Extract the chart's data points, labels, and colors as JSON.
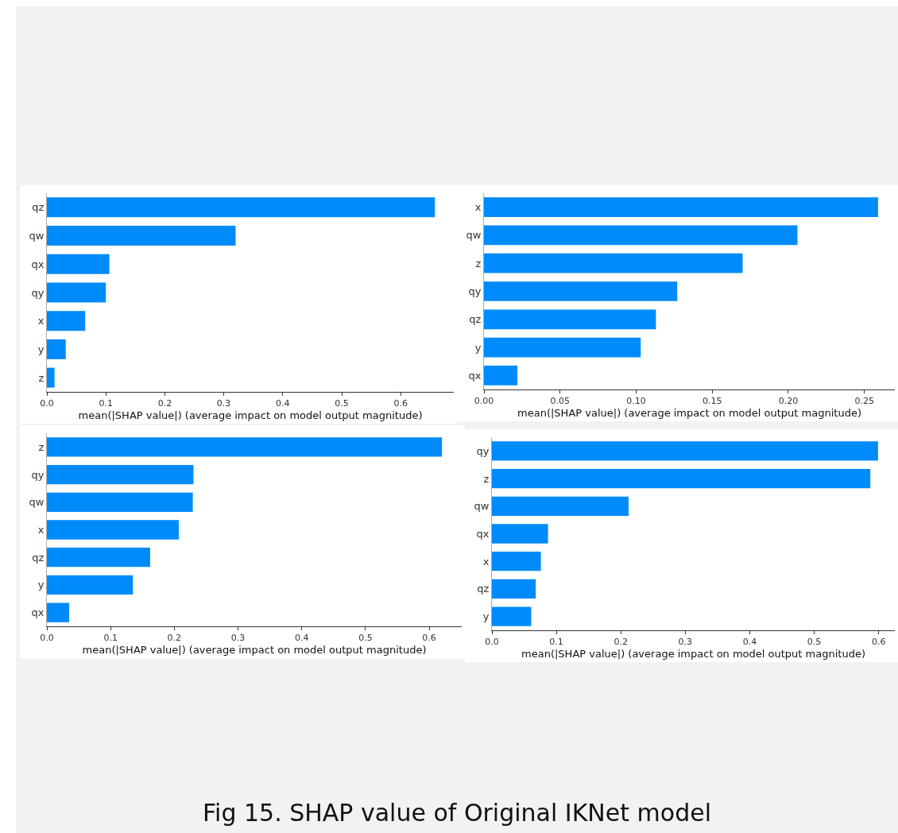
{
  "chart_data": [
    {
      "type": "bar",
      "orientation": "horizontal",
      "categories": [
        "qz",
        "qw",
        "qx",
        "qy",
        "x",
        "y",
        "z"
      ],
      "values": [
        0.658,
        0.32,
        0.106,
        0.1,
        0.065,
        0.032,
        0.013
      ],
      "color": "#008bfb",
      "xlabel": "mean(|SHAP value|) (average impact on model output magnitude)",
      "xlim": [
        0,
        0.69
      ],
      "xticks": [
        {
          "value": 0,
          "label": "0.0"
        },
        {
          "value": 0.1,
          "label": "0.1"
        },
        {
          "value": 0.2,
          "label": "0.2"
        },
        {
          "value": 0.3,
          "label": "0.3"
        },
        {
          "value": 0.4,
          "label": "0.4"
        },
        {
          "value": 0.5,
          "label": "0.5"
        },
        {
          "value": 0.6,
          "label": "0.6"
        }
      ],
      "grid": false
    },
    {
      "type": "bar",
      "orientation": "horizontal",
      "categories": [
        "x",
        "qw",
        "z",
        "qy",
        "qz",
        "y",
        "qx"
      ],
      "values": [
        0.259,
        0.206,
        0.17,
        0.127,
        0.113,
        0.103,
        0.022
      ],
      "color": "#008bfb",
      "xlabel": "mean(|SHAP value|) (average impact on model output magnitude)",
      "xlim": [
        0,
        0.27
      ],
      "xticks": [
        {
          "value": 0,
          "label": "0.00"
        },
        {
          "value": 0.05,
          "label": "0.05"
        },
        {
          "value": 0.1,
          "label": "0.10"
        },
        {
          "value": 0.15,
          "label": "0.15"
        },
        {
          "value": 0.2,
          "label": "0.20"
        },
        {
          "value": 0.25,
          "label": "0.25"
        }
      ],
      "grid": false
    },
    {
      "type": "bar",
      "orientation": "horizontal",
      "categories": [
        "z",
        "qy",
        "qw",
        "x",
        "qz",
        "y",
        "qx"
      ],
      "values": [
        0.62,
        0.23,
        0.229,
        0.207,
        0.162,
        0.135,
        0.035
      ],
      "color": "#008bfb",
      "xlabel": "mean(|SHAP value|) (average impact on model output magnitude)",
      "xlim": [
        0,
        0.651
      ],
      "xticks": [
        {
          "value": 0,
          "label": "0.0"
        },
        {
          "value": 0.1,
          "label": "0.1"
        },
        {
          "value": 0.2,
          "label": "0.2"
        },
        {
          "value": 0.3,
          "label": "0.3"
        },
        {
          "value": 0.4,
          "label": "0.4"
        },
        {
          "value": 0.5,
          "label": "0.5"
        },
        {
          "value": 0.6,
          "label": "0.6"
        }
      ],
      "grid": false
    },
    {
      "type": "bar",
      "orientation": "horizontal",
      "categories": [
        "qy",
        "z",
        "qw",
        "qx",
        "x",
        "qz",
        "y"
      ],
      "values": [
        0.599,
        0.587,
        0.212,
        0.087,
        0.076,
        0.068,
        0.061
      ],
      "color": "#008bfb",
      "xlabel": "mean(|SHAP value|) (average impact on model output magnitude)",
      "xlim": [
        0,
        0.625
      ],
      "xticks": [
        {
          "value": 0,
          "label": "0.0"
        },
        {
          "value": 0.1,
          "label": "0.1"
        },
        {
          "value": 0.2,
          "label": "0.2"
        },
        {
          "value": 0.3,
          "label": "0.3"
        },
        {
          "value": 0.4,
          "label": "0.4"
        },
        {
          "value": 0.5,
          "label": "0.5"
        },
        {
          "value": 0.6,
          "label": "0.6"
        }
      ],
      "grid": false,
      "annotations": [
        "Fig 15. SHAP value of Original IKNet model"
      ]
    }
  ]
}
